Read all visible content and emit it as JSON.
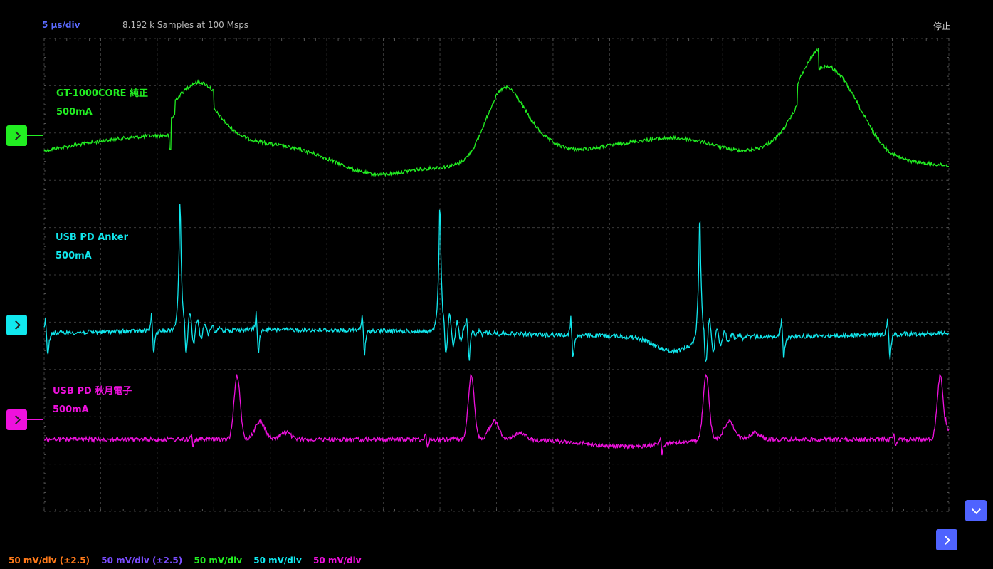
{
  "header": {
    "timebase": "5 µs/div",
    "samples": "8.192 k Samples at 100 Msps",
    "run_state": "停止"
  },
  "colors": {
    "ch_green": "#22ee22",
    "ch_cyan": "#11e8ee",
    "ch_magenta": "#ee11dd",
    "orange": "#ff7a1a",
    "purple": "#7a4dff",
    "accent_button": "#4f63ff"
  },
  "channels": [
    {
      "name": "GT-1000CORE 純正",
      "current": "500mA",
      "color": "#22ee22"
    },
    {
      "name": "USB PD Anker",
      "current": "500mA",
      "color": "#11e8ee"
    },
    {
      "name": "USB PD 秋月電子",
      "current": "500mA",
      "color": "#ee11dd"
    }
  ],
  "scales": [
    {
      "text": "50 mV/div (±2.5)",
      "color": "#ff7a1a"
    },
    {
      "text": "50 mV/div (±2.5)",
      "color": "#7a4dff"
    },
    {
      "text": "50 mV/div",
      "color": "#22ee22"
    },
    {
      "text": "50 mV/div",
      "color": "#11e8ee"
    },
    {
      "text": "50 mV/div",
      "color": "#ee11dd"
    }
  ],
  "icons": {
    "channel_marker": "chevron-right-icon",
    "scroll_down": "chevron-down-icon",
    "next": "chevron-right-icon"
  }
}
